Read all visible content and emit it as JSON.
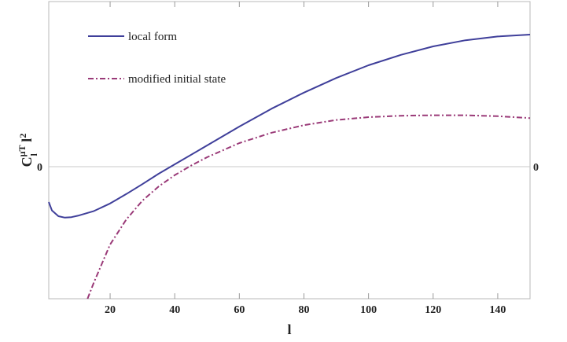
{
  "chart_data": {
    "type": "line",
    "title": "",
    "xlabel": "l",
    "ylabel": {
      "base": "C",
      "sub": "l",
      "sup": "μT",
      "tail": " l",
      "tail_sup": "2"
    },
    "xlim": [
      1,
      150
    ],
    "ylim": [
      -2.8,
      3.5
    ],
    "x_ticks": [
      20,
      40,
      60,
      80,
      100,
      120,
      140
    ],
    "y_ticks": [
      {
        "value": 0,
        "label": "0"
      }
    ],
    "legend": {
      "placement": "top-left"
    },
    "series": [
      {
        "name": "local form",
        "color": "#3f3f9a",
        "dash": "solid",
        "x": [
          1,
          2,
          4,
          6,
          8,
          10,
          15,
          20,
          25,
          30,
          35,
          40,
          50,
          60,
          70,
          80,
          90,
          100,
          110,
          120,
          130,
          140,
          150
        ],
        "y": [
          -0.75,
          -0.93,
          -1.05,
          -1.08,
          -1.07,
          -1.04,
          -0.94,
          -0.78,
          -0.58,
          -0.37,
          -0.15,
          0.05,
          0.45,
          0.85,
          1.23,
          1.57,
          1.88,
          2.15,
          2.37,
          2.55,
          2.68,
          2.76,
          2.8
        ]
      },
      {
        "name": "modified initial state",
        "color": "#9a3a78",
        "dash": "dashdot",
        "x": [
          13,
          15,
          20,
          25,
          30,
          35,
          40,
          45,
          50,
          60,
          70,
          80,
          90,
          100,
          110,
          120,
          130,
          140,
          150
        ],
        "y": [
          -2.8,
          -2.45,
          -1.65,
          -1.12,
          -0.72,
          -0.42,
          -0.18,
          0.02,
          0.2,
          0.5,
          0.72,
          0.88,
          0.99,
          1.05,
          1.08,
          1.09,
          1.09,
          1.07,
          1.03
        ]
      }
    ]
  }
}
